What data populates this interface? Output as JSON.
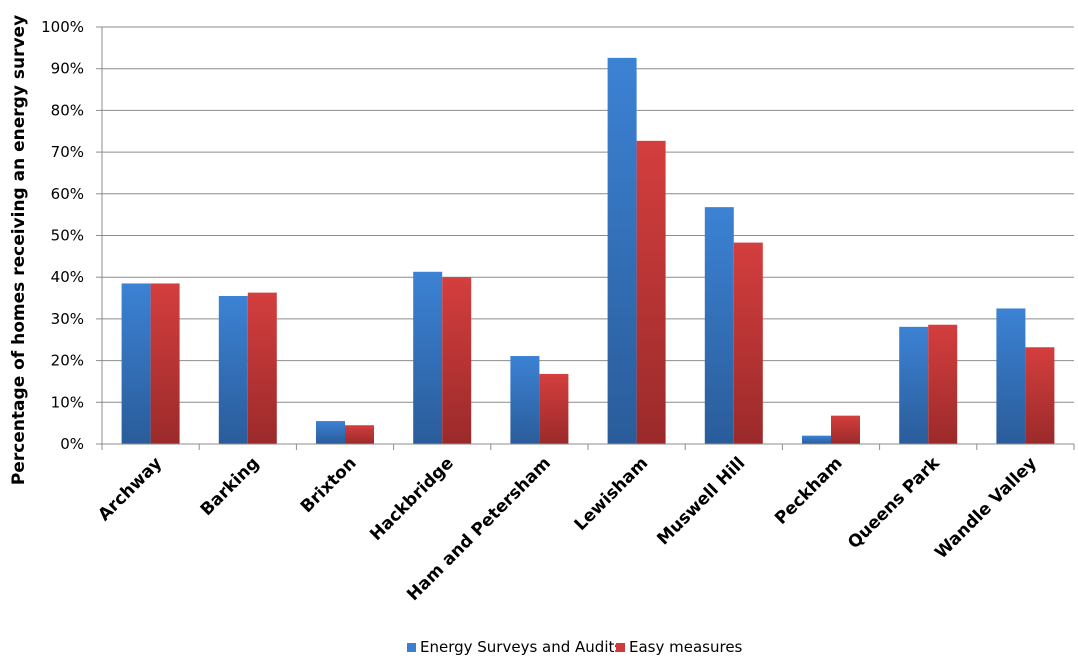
{
  "chart_data": {
    "type": "bar",
    "title": "",
    "xlabel": "",
    "ylabel": "Percentage of homes  receiving an energy survey",
    "ylim": [
      0,
      100
    ],
    "yticks": [
      "0%",
      "10%",
      "20%",
      "30%",
      "40%",
      "50%",
      "60%",
      "70%",
      "80%",
      "90%",
      "100%"
    ],
    "grid": true,
    "legend_position": "bottom",
    "categories": [
      "Archway",
      "Barking",
      "Brixton",
      "Hackbridge",
      "Ham and Petersham",
      "Lewisham",
      "Muswell Hill",
      "Peckham",
      "Queens Park",
      "Wandle Valley"
    ],
    "series": [
      {
        "name": "Energy Surveys and Audits",
        "color": "#3c7fd0",
        "values": [
          38.5,
          35.5,
          5.5,
          41.3,
          21.1,
          92.6,
          56.8,
          2.0,
          28.1,
          32.5
        ]
      },
      {
        "name": "Easy measures",
        "color": "#cf3b3b",
        "values": [
          38.5,
          36.3,
          4.5,
          40.0,
          16.8,
          72.7,
          48.3,
          6.8,
          28.6,
          23.2
        ]
      }
    ]
  }
}
